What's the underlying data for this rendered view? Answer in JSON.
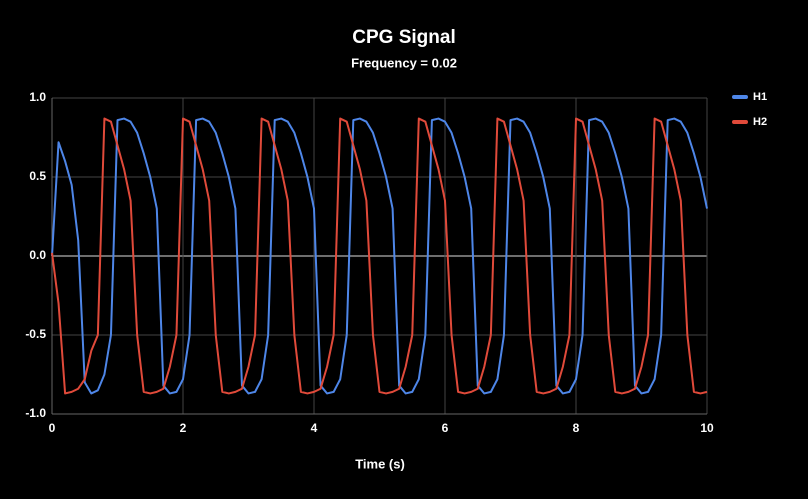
{
  "chart_data": {
    "type": "line",
    "title": "CPG Signal",
    "subtitle": "Frequency = 0.02",
    "xlabel": "Time (s)",
    "x": [
      0,
      0.1,
      0.2,
      0.3,
      0.4,
      0.5,
      0.6,
      0.7,
      0.8,
      0.9,
      1,
      1.1,
      1.2,
      1.3,
      1.4,
      1.5,
      1.6,
      1.7,
      1.8,
      1.9,
      2,
      2.1,
      2.2,
      2.3,
      2.4,
      2.5,
      2.6,
      2.7,
      2.8,
      2.9,
      3,
      3.1,
      3.2,
      3.3,
      3.4,
      3.5,
      3.6,
      3.7,
      3.8,
      3.9,
      4,
      4.1,
      4.2,
      4.3,
      4.4,
      4.5,
      4.6,
      4.7,
      4.8,
      4.9,
      5,
      5.1,
      5.2,
      5.3,
      5.4,
      5.5,
      5.6,
      5.7,
      5.8,
      5.9,
      6,
      6.1,
      6.2,
      6.3,
      6.4,
      6.5,
      6.6,
      6.7,
      6.8,
      6.9,
      7,
      7.1,
      7.2,
      7.3,
      7.4,
      7.5,
      7.6,
      7.7,
      7.8,
      7.9,
      8,
      8.1,
      8.2,
      8.3,
      8.4,
      8.5,
      8.6,
      8.7,
      8.8,
      8.9,
      9,
      9.1,
      9.2,
      9.3,
      9.4,
      9.5,
      9.6,
      9.7,
      9.8,
      9.9,
      10
    ],
    "series": [
      {
        "name": "H1",
        "color": "#4e86e8",
        "values": [
          0,
          0.72,
          0.6,
          0.45,
          0.1,
          -0.8,
          -0.87,
          -0.85,
          -0.75,
          -0.5,
          0.86,
          0.87,
          0.85,
          0.78,
          0.65,
          0.5,
          0.3,
          -0.82,
          -0.87,
          -0.86,
          -0.78,
          -0.5,
          0.86,
          0.87,
          0.85,
          0.78,
          0.65,
          0.5,
          0.3,
          -0.82,
          -0.87,
          -0.86,
          -0.78,
          -0.5,
          0.86,
          0.87,
          0.85,
          0.78,
          0.65,
          0.5,
          0.3,
          -0.82,
          -0.87,
          -0.86,
          -0.78,
          -0.5,
          0.86,
          0.87,
          0.85,
          0.78,
          0.65,
          0.5,
          0.3,
          -0.82,
          -0.87,
          -0.86,
          -0.78,
          -0.5,
          0.86,
          0.87,
          0.85,
          0.78,
          0.65,
          0.5,
          0.3,
          -0.82,
          -0.87,
          -0.86,
          -0.78,
          -0.5,
          0.86,
          0.87,
          0.85,
          0.78,
          0.65,
          0.5,
          0.3,
          -0.82,
          -0.87,
          -0.86,
          -0.78,
          -0.5,
          0.86,
          0.87,
          0.85,
          0.78,
          0.65,
          0.5,
          0.3,
          -0.82,
          -0.87,
          -0.86,
          -0.78,
          -0.5,
          0.86,
          0.87,
          0.85,
          0.78,
          0.65,
          0.5,
          0.3
        ]
      },
      {
        "name": "H2",
        "color": "#e04a3a",
        "values": [
          0.02,
          -0.3,
          -0.87,
          -0.86,
          -0.84,
          -0.78,
          -0.6,
          -0.5,
          0.87,
          0.85,
          0.7,
          0.55,
          0.35,
          -0.5,
          -0.86,
          -0.87,
          -0.86,
          -0.84,
          -0.7,
          -0.5,
          0.87,
          0.85,
          0.7,
          0.55,
          0.35,
          -0.5,
          -0.86,
          -0.87,
          -0.86,
          -0.84,
          -0.7,
          -0.5,
          0.87,
          0.85,
          0.7,
          0.55,
          0.35,
          -0.5,
          -0.86,
          -0.87,
          -0.86,
          -0.84,
          -0.7,
          -0.5,
          0.87,
          0.85,
          0.7,
          0.55,
          0.35,
          -0.5,
          -0.86,
          -0.87,
          -0.86,
          -0.84,
          -0.7,
          -0.5,
          0.87,
          0.85,
          0.7,
          0.55,
          0.35,
          -0.5,
          -0.86,
          -0.87,
          -0.86,
          -0.84,
          -0.7,
          -0.5,
          0.87,
          0.85,
          0.7,
          0.55,
          0.35,
          -0.5,
          -0.86,
          -0.87,
          -0.86,
          -0.84,
          -0.7,
          -0.5,
          0.87,
          0.85,
          0.7,
          0.55,
          0.35,
          -0.5,
          -0.86,
          -0.87,
          -0.86,
          -0.84,
          -0.7,
          -0.5,
          0.87,
          0.85,
          0.7,
          0.55,
          0.35,
          -0.5,
          -0.86,
          -0.87,
          -0.86
        ]
      }
    ],
    "xlim": [
      0,
      10
    ],
    "xticks": [
      0,
      2,
      4,
      6,
      8,
      10
    ],
    "ylim": [
      -1,
      1
    ],
    "yticks": [
      {
        "value": -1,
        "label": "-1.0"
      },
      {
        "value": -0.5,
        "label": "-0.5"
      },
      {
        "value": 0,
        "label": "0.0"
      },
      {
        "value": 0.5,
        "label": "0.5"
      },
      {
        "value": 1,
        "label": "1.0"
      }
    ],
    "grid": true,
    "legend": "right"
  }
}
